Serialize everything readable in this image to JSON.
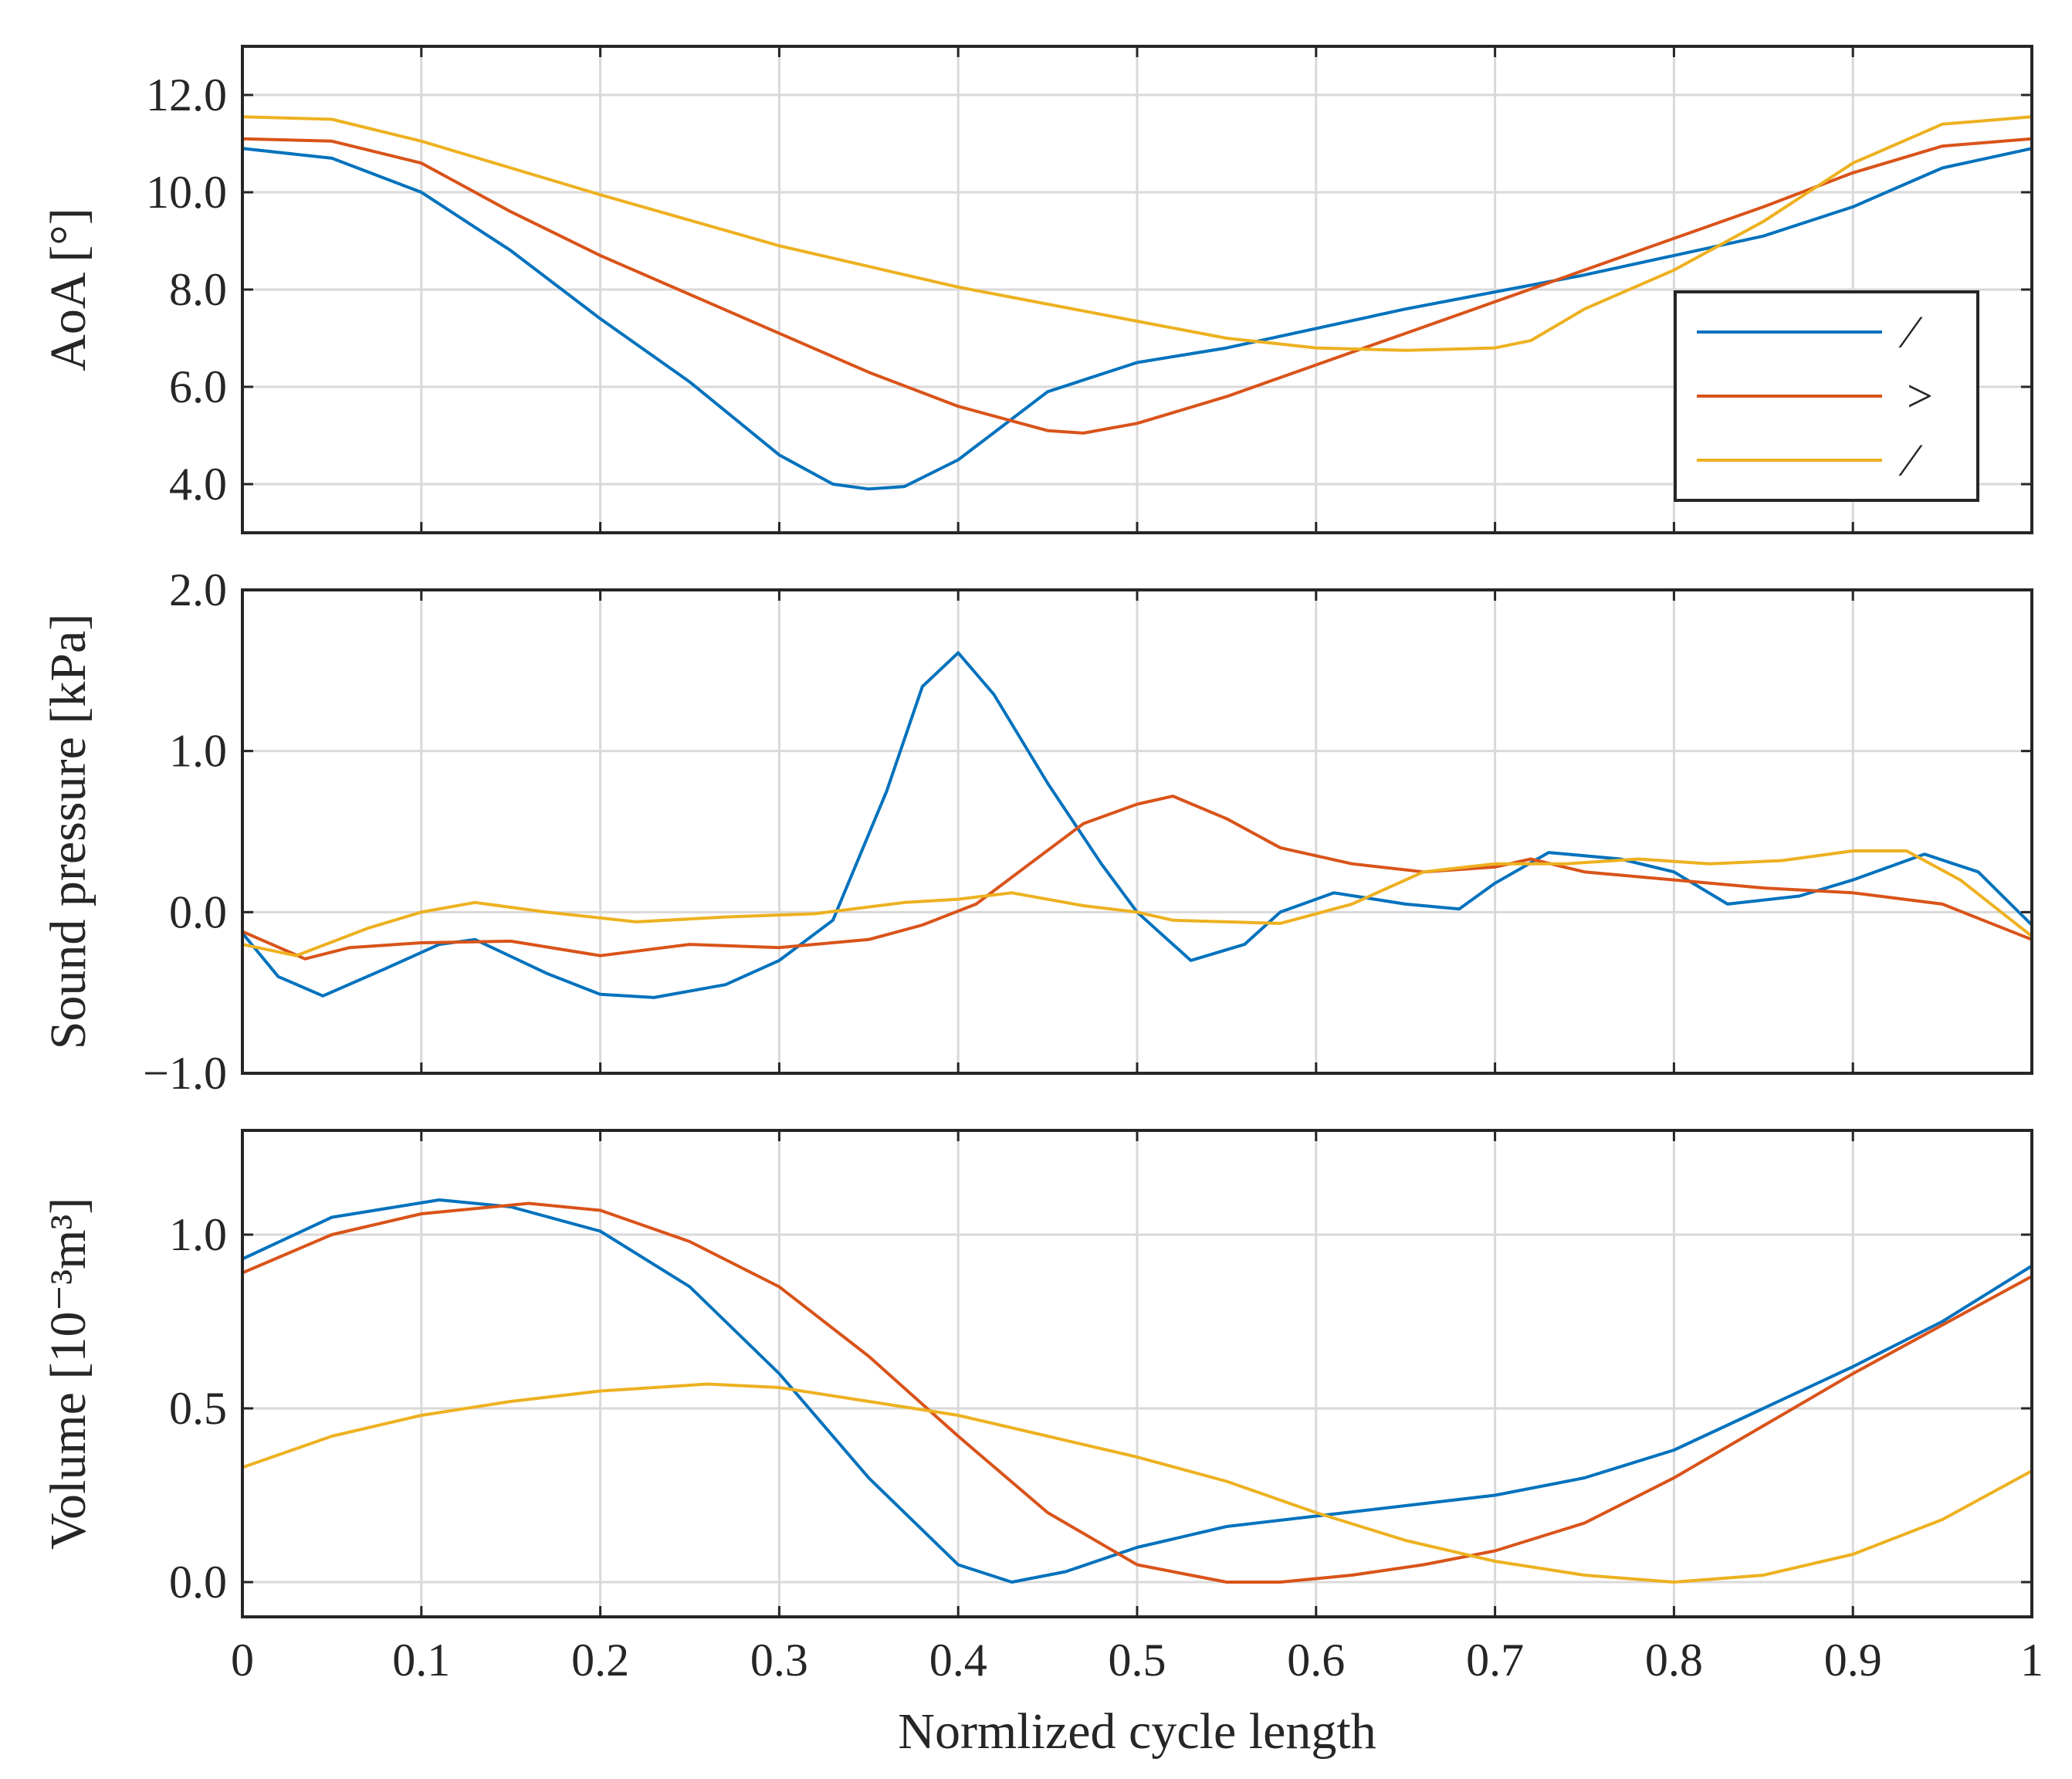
{
  "chart_data": [
    {
      "type": "line",
      "ylabel": "AoA [°]",
      "ylim": [
        3.0,
        13.0
      ],
      "yticks": [
        4.0,
        6.0,
        8.0,
        10.0,
        12.0
      ],
      "ytick_labels": [
        "4.0",
        "6.0",
        "8.0",
        "10.0",
        "12.0"
      ],
      "xlim": [
        0,
        1
      ],
      "grid": true,
      "legend": {
        "placement": "right",
        "entries": [
          "⁄",
          ">",
          "⁄"
        ]
      },
      "series": [
        {
          "name": "⁄",
          "color": "#0072BD",
          "x": [
            0,
            0.05,
            0.1,
            0.15,
            0.2,
            0.25,
            0.3,
            0.33,
            0.35,
            0.37,
            0.4,
            0.45,
            0.5,
            0.55,
            0.6,
            0.65,
            0.7,
            0.75,
            0.8,
            0.85,
            0.9,
            0.95,
            1.0
          ],
          "y": [
            10.9,
            10.7,
            10.0,
            8.8,
            7.4,
            6.1,
            4.6,
            4.0,
            3.9,
            3.95,
            4.5,
            5.9,
            6.5,
            6.8,
            7.2,
            7.6,
            7.95,
            8.3,
            8.7,
            9.1,
            9.7,
            10.5,
            10.9
          ]
        },
        {
          "name": ">",
          "color": "#D95319",
          "x": [
            0,
            0.05,
            0.1,
            0.15,
            0.2,
            0.25,
            0.3,
            0.35,
            0.4,
            0.45,
            0.47,
            0.5,
            0.55,
            0.6,
            0.65,
            0.7,
            0.75,
            0.8,
            0.85,
            0.9,
            0.95,
            1.0
          ],
          "y": [
            11.1,
            11.05,
            10.6,
            9.6,
            8.7,
            7.9,
            7.1,
            6.3,
            5.6,
            5.1,
            5.05,
            5.25,
            5.8,
            6.45,
            7.1,
            7.75,
            8.4,
            9.05,
            9.7,
            10.4,
            10.95,
            11.1
          ]
        },
        {
          "name": "⁄",
          "color": "#EDB120",
          "x": [
            0,
            0.05,
            0.1,
            0.15,
            0.2,
            0.3,
            0.4,
            0.5,
            0.55,
            0.6,
            0.65,
            0.7,
            0.72,
            0.75,
            0.8,
            0.85,
            0.9,
            0.95,
            1.0
          ],
          "y": [
            11.55,
            11.5,
            11.05,
            10.5,
            9.95,
            8.9,
            8.05,
            7.35,
            7.0,
            6.8,
            6.75,
            6.8,
            6.95,
            7.6,
            8.4,
            9.4,
            10.6,
            11.4,
            11.55
          ]
        }
      ]
    },
    {
      "type": "line",
      "ylabel": "Sound pressure [kPa]",
      "ylim": [
        -1.0,
        2.0
      ],
      "yticks": [
        -1.0,
        0.0,
        1.0,
        2.0
      ],
      "ytick_labels": [
        "−1.0",
        "0.0",
        "1.0",
        "2.0"
      ],
      "xlim": [
        0,
        1
      ],
      "grid": true,
      "series": [
        {
          "name": "⁄",
          "color": "#0072BD",
          "x": [
            0,
            0.02,
            0.045,
            0.08,
            0.11,
            0.13,
            0.17,
            0.2,
            0.23,
            0.27,
            0.3,
            0.33,
            0.36,
            0.38,
            0.4,
            0.42,
            0.45,
            0.48,
            0.5,
            0.53,
            0.56,
            0.58,
            0.61,
            0.65,
            0.68,
            0.7,
            0.73,
            0.77,
            0.8,
            0.83,
            0.87,
            0.9,
            0.94,
            0.97,
            1.0
          ],
          "y": [
            -0.13,
            -0.4,
            -0.52,
            -0.35,
            -0.2,
            -0.17,
            -0.38,
            -0.51,
            -0.53,
            -0.45,
            -0.3,
            -0.05,
            0.75,
            1.4,
            1.61,
            1.35,
            0.8,
            0.3,
            0.0,
            -0.3,
            -0.2,
            0.0,
            0.12,
            0.05,
            0.02,
            0.18,
            0.37,
            0.33,
            0.25,
            0.05,
            0.1,
            0.2,
            0.36,
            0.25,
            -0.08
          ]
        },
        {
          "name": ">",
          "color": "#D95319",
          "x": [
            0,
            0.035,
            0.06,
            0.1,
            0.15,
            0.2,
            0.25,
            0.3,
            0.35,
            0.38,
            0.41,
            0.44,
            0.47,
            0.5,
            0.52,
            0.55,
            0.58,
            0.62,
            0.66,
            0.7,
            0.72,
            0.75,
            0.8,
            0.85,
            0.9,
            0.95,
            1.0
          ],
          "y": [
            -0.12,
            -0.29,
            -0.22,
            -0.19,
            -0.18,
            -0.27,
            -0.2,
            -0.22,
            -0.17,
            -0.08,
            0.05,
            0.3,
            0.55,
            0.67,
            0.72,
            0.58,
            0.4,
            0.3,
            0.25,
            0.28,
            0.33,
            0.25,
            0.2,
            0.15,
            0.12,
            0.05,
            -0.17
          ]
        },
        {
          "name": "⁄",
          "color": "#EDB120",
          "x": [
            0,
            0.03,
            0.07,
            0.1,
            0.13,
            0.17,
            0.22,
            0.27,
            0.32,
            0.37,
            0.4,
            0.43,
            0.47,
            0.5,
            0.52,
            0.55,
            0.58,
            0.62,
            0.66,
            0.7,
            0.74,
            0.78,
            0.82,
            0.86,
            0.9,
            0.93,
            0.96,
            1.0
          ],
          "y": [
            -0.2,
            -0.27,
            -0.1,
            0.0,
            0.06,
            0.0,
            -0.06,
            -0.03,
            -0.01,
            0.06,
            0.08,
            0.12,
            0.04,
            0.0,
            -0.05,
            -0.06,
            -0.07,
            0.05,
            0.25,
            0.3,
            0.3,
            0.33,
            0.3,
            0.32,
            0.38,
            0.38,
            0.2,
            -0.15
          ]
        }
      ]
    },
    {
      "type": "line",
      "ylabel": "Volume [10⁻³m³]",
      "ylim": [
        -0.1,
        1.3
      ],
      "yticks": [
        0.0,
        0.5,
        1.0
      ],
      "ytick_labels": [
        "0.0",
        "0.5",
        "1.0"
      ],
      "xlabel": "Normlized cycle length",
      "xlim": [
        0,
        1
      ],
      "xticks": [
        0,
        0.1,
        0.2,
        0.3,
        0.4,
        0.5,
        0.6,
        0.7,
        0.8,
        0.9,
        1.0
      ],
      "xtick_labels": [
        "0",
        "0.1",
        "0.2",
        "0.3",
        "0.4",
        "0.5",
        "0.6",
        "0.7",
        "0.8",
        "0.9",
        "1"
      ],
      "grid": true,
      "series": [
        {
          "name": "⁄",
          "color": "#0072BD",
          "x": [
            0,
            0.05,
            0.11,
            0.15,
            0.2,
            0.25,
            0.3,
            0.35,
            0.4,
            0.43,
            0.46,
            0.5,
            0.55,
            0.6,
            0.65,
            0.7,
            0.75,
            0.8,
            0.85,
            0.9,
            0.95,
            1.0
          ],
          "y": [
            0.93,
            1.05,
            1.1,
            1.08,
            1.01,
            0.85,
            0.6,
            0.3,
            0.05,
            0.0,
            0.03,
            0.1,
            0.16,
            0.19,
            0.22,
            0.25,
            0.3,
            0.38,
            0.5,
            0.62,
            0.75,
            0.91
          ]
        },
        {
          "name": ">",
          "color": "#D95319",
          "x": [
            0,
            0.05,
            0.1,
            0.16,
            0.2,
            0.25,
            0.3,
            0.35,
            0.4,
            0.45,
            0.5,
            0.55,
            0.58,
            0.62,
            0.66,
            0.7,
            0.75,
            0.8,
            0.85,
            0.9,
            0.95,
            1.0
          ],
          "y": [
            0.89,
            1.0,
            1.06,
            1.09,
            1.07,
            0.98,
            0.85,
            0.65,
            0.42,
            0.2,
            0.05,
            0.0,
            0.0,
            0.02,
            0.05,
            0.09,
            0.17,
            0.3,
            0.45,
            0.6,
            0.74,
            0.88
          ]
        },
        {
          "name": "⁄",
          "color": "#EDB120",
          "x": [
            0,
            0.05,
            0.1,
            0.15,
            0.2,
            0.26,
            0.3,
            0.35,
            0.4,
            0.45,
            0.5,
            0.55,
            0.6,
            0.65,
            0.7,
            0.75,
            0.8,
            0.85,
            0.9,
            0.95,
            1.0
          ],
          "y": [
            0.33,
            0.42,
            0.48,
            0.52,
            0.55,
            0.57,
            0.56,
            0.52,
            0.48,
            0.42,
            0.36,
            0.29,
            0.2,
            0.12,
            0.06,
            0.02,
            0.0,
            0.02,
            0.08,
            0.18,
            0.32
          ]
        }
      ]
    }
  ]
}
